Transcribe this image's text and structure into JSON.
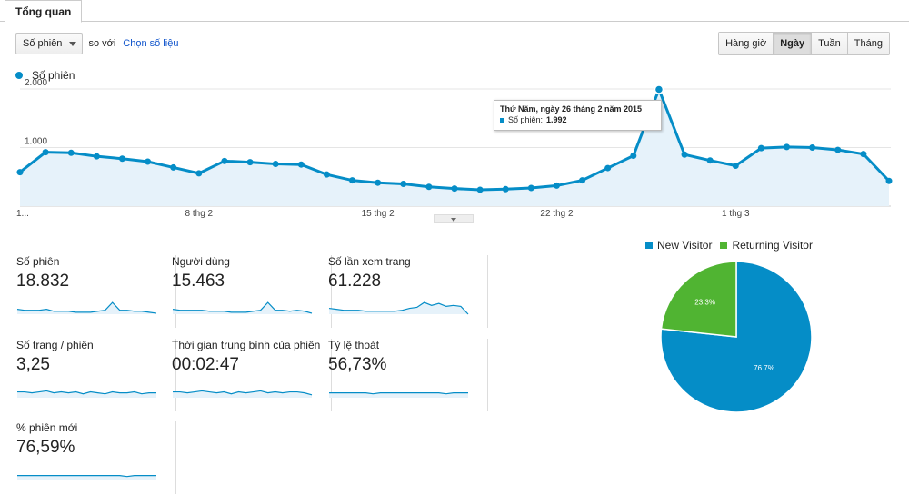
{
  "tabs": {
    "overview": "Tổng quan"
  },
  "controls": {
    "metric": "Số phiên",
    "vs": "so với",
    "pick_metric": "Chọn số liệu"
  },
  "range_buttons": [
    {
      "label": "Hàng giờ",
      "active": false
    },
    {
      "label": "Ngày",
      "active": true
    },
    {
      "label": "Tuần",
      "active": false
    },
    {
      "label": "Tháng",
      "active": false
    }
  ],
  "chart_legend": "Số phiên",
  "chart_data": {
    "type": "area",
    "series": [
      {
        "name": "Số phiên",
        "color": "#058dc7",
        "values": [
          580,
          920,
          910,
          850,
          810,
          760,
          660,
          560,
          770,
          750,
          720,
          710,
          540,
          440,
          400,
          380,
          330,
          300,
          280,
          290,
          310,
          350,
          440,
          650,
          860,
          1992,
          880,
          780,
          690,
          990,
          1010,
          1000,
          960,
          890,
          430
        ]
      }
    ],
    "x_ticks": [
      {
        "index": 0,
        "label": "1..."
      },
      {
        "index": 7,
        "label": "8 thg 2"
      },
      {
        "index": 14,
        "label": "15 thg 2"
      },
      {
        "index": 21,
        "label": "22 thg 2"
      },
      {
        "index": 28,
        "label": "1 thg 3"
      }
    ],
    "y_ticks": [
      {
        "value": 1000,
        "label": "1.000"
      },
      {
        "value": 2000,
        "label": "2.000"
      }
    ],
    "ylim": [
      0,
      2000
    ],
    "grid": true
  },
  "tooltip": {
    "title": "Thứ Năm, ngày 26 tháng 2 năm 2015",
    "label": "Số phiên:",
    "value": "1.992"
  },
  "metrics": [
    {
      "name": "Số phiên",
      "value": "18.832",
      "spark": [
        5,
        4,
        4,
        4,
        5,
        3,
        3,
        3,
        2,
        2,
        2,
        3,
        4,
        12,
        4,
        4,
        3,
        3,
        2,
        1
      ]
    },
    {
      "name": "Người dùng",
      "value": "15.463",
      "spark": [
        5,
        4,
        4,
        4,
        4,
        3,
        3,
        3,
        2,
        2,
        2,
        3,
        4,
        12,
        4,
        4,
        3,
        4,
        3,
        1
      ]
    },
    {
      "name": "Số lần xem trang",
      "value": "61.228",
      "spark": [
        6,
        5,
        4,
        4,
        4,
        3,
        3,
        3,
        3,
        3,
        4,
        6,
        7,
        12,
        9,
        11,
        8,
        9,
        8,
        0
      ]
    },
    {
      "name": "Số trang / phiên",
      "value": "3,25",
      "spark": [
        6,
        6,
        5,
        6,
        7,
        5,
        6,
        5,
        6,
        4,
        6,
        5,
        4,
        6,
        5,
        5,
        6,
        4,
        5,
        5
      ]
    },
    {
      "name": "Thời gian trung bình của phiên",
      "value": "00:02:47",
      "spark": [
        6,
        6,
        5,
        6,
        7,
        6,
        5,
        6,
        4,
        6,
        5,
        6,
        7,
        5,
        6,
        5,
        6,
        6,
        5,
        3
      ]
    },
    {
      "name": "Tỷ lệ thoát",
      "value": "56,73%",
      "spark": [
        5,
        5,
        5,
        5,
        5,
        5,
        4,
        5,
        5,
        5,
        5,
        5,
        5,
        5,
        5,
        5,
        4,
        5,
        5,
        5
      ]
    },
    {
      "name": "% phiên mới",
      "value": "76,59%",
      "spark": [
        5,
        5,
        5,
        5,
        5,
        5,
        5,
        5,
        5,
        5,
        5,
        5,
        5,
        5,
        5,
        4,
        5,
        5,
        5,
        5
      ]
    }
  ],
  "pie": {
    "slices": [
      {
        "name": "New Visitor",
        "value": 76.7,
        "label": "76.7%",
        "color": "#058dc7"
      },
      {
        "name": "Returning Visitor",
        "value": 23.3,
        "label": "23.3%",
        "color": "#50b432"
      }
    ]
  }
}
